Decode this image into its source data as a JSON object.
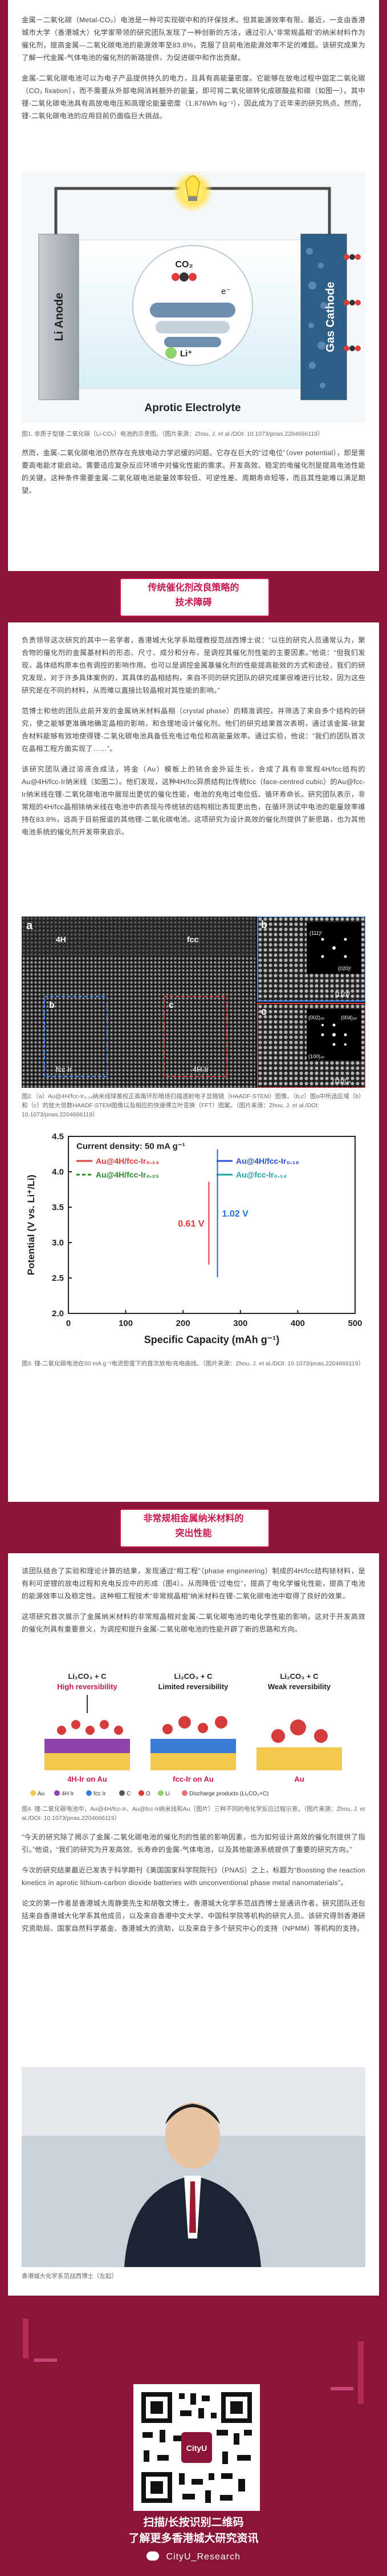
{
  "intro": {
    "paragraphs": [
      "金属－二氧化碳（Metal-CO₂）电池是一种可实现碳中和的环保技术。但其能源效率有限。最近，一支由香港城市大学（香港城大）化学家带领的研究团队发现了一种创新的方法，通过引入“非常规晶相”的纳米材料作为催化剂，提高金属—二氧化碳电池的能源效率至83.8%，克服了目前电池能源效率不足的难题。该研究成果为了解一代金属-气体电池的催化剂的新路提供，为促进碳中和作出贡献。",
      "金属-二氧化碳电池可以为电子产品提供持久的电力，且具有高能量密度。它能够在放电过程中固定二氧化碳（CO₂ fixation），而不需要从外部电网消耗额外的能量，即可将二氧化碳转化成碳酸盐和碳（如图一）。其中锂-二氧化碳电池具有高放电电压和高理论能量密度（1,876Wh kg⁻¹），因此成为了近年来的研究热点。然而，锂-二氧化碳电池的应用目前仍面临巨大挑战。"
    ],
    "figure1_caption": "图1. 非质子型锂-二氧化碳（Li-CO₂）电池的示意图。（图片来源：Zhou, J. et al./DOI: 10.1073/pnas.2204666119）",
    "paragraph_after": "然而，金属-二氧化碳电池仍然存在充放电动力学迟缓的问题。它存在巨大的“过电位”（over potential），即是需要高电能才能启动。需要适应复杂反应环境中对催化性能的需求。开发高效、稳定的电催化剂是提高电池性能的关键。这种条件需要金属-二氧化碳电池能量效率较低、可逆性差、周期寿命短等，而且其性能难以满足期望。"
  },
  "figure1": {
    "left_label": "Li Anode",
    "right_label": "Gas Cathode",
    "bottom_label": "Aprotic Electrolyte",
    "co2_label": "CO₂",
    "e_label": "e⁻",
    "li_label": "Li⁺"
  },
  "section1": {
    "title_line1": "传统催化剂改良策略的",
    "title_line2": "技术障碍",
    "paragraphs": [
      "负责领导这次研究的其中一名学者，香港城大化学系助理教授范战西博士说：“以往的研究人员通常认为，聚合物的催化剂的金属基材料的形态、尺寸、成分和分布，是调控其催化剂性能的主要因素。”他说：“但我们发现，晶体结构原本也有调控的影响作用。也可以是调控金属基催化剂的性能提高能效的方式和途径，我们的研究发现，对于许多具体案例的，其具体的晶相结构，来自不同的研究团队的研究成果很难进行比较，因为这些研究是在不同的材料，从而难以直接比较晶相对其性能的影响。”",
      "范博士和他的团队此前开发的金属纳米材料晶相（crystal phase）的精准调控。并筛选了来自多个结构的研究，使之能够更准确地确定晶相的影响，和合理地设计催化剂。他们的研究结果首次表明，通过该金属-铱复合材料能够有效地使得锂-二氧化碳电池具备低充电过电位和高能量效率。通过实验，他说：“我们的团队首次在晶相工程方面实现了……”。",
      "该研究团队通过溶液合成法，将金（Au）模板上的铱合金外延生长，合成了具有非常规4H/fcc结构的Au@4H/fcc-Ir纳米线（如图二）。他们发现，这种4H/fcc异质结构比传统fcc（face-centred cubic）的Au@fcc-Ir纳米线在锂-二氧化碳电池中展现出更优的催化性能，电池的充电过电位低、循环寿命长。研究团队表示，非常规的4H/fcc晶相铱纳米线在电池中的表现与传统铱的结构相比表现更出色，在循环测试中电池的能量效率维持在83.8%，远高于目前报道的其他锂-二氧化碳电池。这项研究为设计高效的催化剂提供了新思路，也为其他电池系统的催化剂开发带来启示。"
    ],
    "figure2_caption": "图2.（a）Au@4H/fcc-Ir₀.₁₄纳米线球差校正高角环形暗场扫描透射电子显微镜（HAADF-STEM）图像。（b,c）图a中所选区域（b）和（c）的放大倍数HAADF-STEM图像以及相应的快速傅立叶变换（FFT）图案。（图片来源：Zhou, J. et al./DOI: 10.1073/pnas.2204666119）",
    "figure3_caption": "图3. 锂-二氧化碳电池在50 mA g⁻¹电流密度下的首次放电/充电曲线。（图片来源：Zhou, J. et al./DOI: 10.1073/pnas.2204666119）"
  },
  "figure2": {
    "labels": {
      "panel_a": "a",
      "panel_b": "b",
      "panel_c": "c",
      "phase_4h": "4H",
      "phase_fcc": "fcc",
      "region_fcc_ir": "fcc Ir",
      "region_4h_ir": "4H Ir",
      "zone_b": "[110]ᶠ",
      "zone_c": "[110]₄ₕ",
      "spot1": "(111)ᶠ",
      "spot2": "(020)ᶠ",
      "spot3": "(002)₄ₕ",
      "spot4": "(100)₄ₕ",
      "spot5": "(004)₄ₕ"
    }
  },
  "figure3": {
    "chart_data": {
      "type": "line",
      "title": "",
      "annotation": "Current density: 50 mA g⁻¹",
      "xlabel": "Specific Capacity (mAh g⁻¹)",
      "ylabel": "Potential (V vs. Li⁺/Li)",
      "xlim": [
        0,
        500
      ],
      "ylim": [
        2.0,
        4.5
      ],
      "xticks": [
        0,
        100,
        200,
        300,
        400,
        500
      ],
      "yticks": [
        2.0,
        2.5,
        3.0,
        3.5,
        4.0,
        4.5
      ],
      "gap_label_1": "0.61 V",
      "gap_label_2": "1.02 V",
      "series": [
        {
          "name": "Au@4H/fcc-Ir₀.₁₄",
          "color": "#e03a3a",
          "dashed": false,
          "charge": [
            [
              0,
              3.55
            ],
            [
              20,
              3.68
            ],
            [
              60,
              3.74
            ],
            [
              120,
              3.78
            ],
            [
              200,
              3.82
            ],
            [
              300,
              3.86
            ],
            [
              400,
              3.9
            ],
            [
              500,
              3.95
            ]
          ],
          "discharge": [
            [
              0,
              2.9
            ],
            [
              20,
              2.8
            ],
            [
              60,
              2.74
            ],
            [
              150,
              2.71
            ],
            [
              250,
              2.69
            ],
            [
              350,
              2.67
            ],
            [
              450,
              2.64
            ],
            [
              500,
              2.6
            ]
          ]
        },
        {
          "name": "Au@4H/fcc-Ir₀.₁₈",
          "color": "#2a4fd6",
          "dashed": false,
          "charge": [
            [
              0,
              3.7
            ],
            [
              20,
              3.9
            ],
            [
              60,
              3.98
            ],
            [
              120,
              4.02
            ],
            [
              200,
              4.07
            ],
            [
              300,
              4.12
            ],
            [
              400,
              4.17
            ],
            [
              500,
              4.22
            ]
          ],
          "discharge": [
            [
              0,
              2.85
            ],
            [
              20,
              2.72
            ],
            [
              60,
              2.66
            ],
            [
              150,
              2.63
            ],
            [
              250,
              2.61
            ],
            [
              350,
              2.59
            ],
            [
              450,
              2.56
            ],
            [
              500,
              2.52
            ]
          ]
        },
        {
          "name": "Au@4H/fcc-Ir₀.₂₅",
          "color": "#2b8a2b",
          "dashed": true,
          "charge": [
            [
              0,
              3.6
            ],
            [
              20,
              3.8
            ],
            [
              60,
              3.88
            ],
            [
              120,
              3.93
            ],
            [
              200,
              3.98
            ],
            [
              300,
              4.03
            ],
            [
              400,
              4.08
            ],
            [
              500,
              4.13
            ]
          ],
          "discharge": [
            [
              0,
              2.83
            ],
            [
              20,
              2.7
            ],
            [
              60,
              2.64
            ],
            [
              150,
              2.61
            ],
            [
              250,
              2.59
            ],
            [
              350,
              2.57
            ],
            [
              450,
              2.54
            ],
            [
              500,
              2.5
            ]
          ]
        },
        {
          "name": "Au@fcc-Ir₀.₁₄",
          "color": "#1aa5a5",
          "dashed": false,
          "charge": [
            [
              0,
              3.95
            ],
            [
              20,
              4.1
            ],
            [
              60,
              4.18
            ],
            [
              120,
              4.23
            ],
            [
              200,
              4.28
            ],
            [
              300,
              4.32
            ],
            [
              400,
              4.36
            ],
            [
              500,
              4.4
            ]
          ],
          "discharge": [
            [
              0,
              2.78
            ],
            [
              20,
              2.62
            ],
            [
              60,
              2.56
            ],
            [
              150,
              2.53
            ],
            [
              250,
              2.51
            ],
            [
              350,
              2.49
            ],
            [
              450,
              2.46
            ],
            [
              500,
              2.42
            ]
          ]
        }
      ]
    }
  },
  "section2": {
    "title_line1": "非常规相金属纳米材料的",
    "title_line2": "突出性能",
    "paragraphs": [
      "该团队结合了实验和理论计算的结果，发现通过“相工程”（phase engineering）制成的4H/fcc结构铱材料，是有利可逆锂的放电过程和充电反应中的形成（图4）。从而降低“过电位”，提高了电化学催化性能，提高了电池的能源效率以及稳定性。这种相工程技术“非常规晶相”纳米材料在锂-二氧化碳电池中取得了良好的效果。",
      "这项研究首次展示了金属纳米材料的非常规晶相对金属-二氧化碳电池的电化学性能的影响，这对于开发高效的催化剂具有重要意义，为调控和提升金属-二氧化碳电池的性能开辟了新的思路和方向。"
    ],
    "figure4_caption": "图4. 锂-二氧化碳电池中，Au@4H/fcc-Ir、Au@fcc-Ir纳米线和Au（图片）三种不同的电化学反应过程示意。（图片来源：Zhou, J. et al./DOI: 10.1073/pnas.2204666119）",
    "paragraphs_after": [
      "“今天的研究除了揭示了金属-二氧化碳电池的催化剂的性能的影响因素，也为如何设计高效的催化剂提供了指引。”他说，“我们的研究为开发高效、长寿命的金属-气体电池，以及其他能源系统提供了重要的研究方向。”",
      "今次的研究结果最近已发表于科学期刊《美国国家科学院院刊》（PNAS）之上，标题为“Boosting the reaction kinetics in aprotic lithium-carbon dioxide batteries with unconventional phase metal nanomaterials”。",
      "论文的第一作者是香港城大周静雯先生和胡敬文博士。香港城大化学系范战西博士是通讯作者。研究团队还包括来自香港城大化学系其他成员，以及来自香港中文大学、中国科学院等机构的研究人员。该研究得到香港研究资助局、国家自然科学基金、香港城大的资助，以及来自于多个研究中心的支持（NPMM）等机构的支持。"
    ],
    "photo_caption": "香港城大化学系范战西博士（左起）"
  },
  "figure4": {
    "panel1_title": "Li₂CO₃ + C",
    "panel1_sub": "High reversibility",
    "panel2_title": "Li₂CO₃ + C",
    "panel2_sub": "Limited reversibility",
    "panel3_title": "Li₂CO₃ + C",
    "panel3_sub": "Weak reversibility",
    "base1": "4H-Ir on Au",
    "base2": "fcc-Ir on Au",
    "base3": "Au",
    "legend": [
      "Au",
      "4H Ir",
      "fcc Ir",
      "C",
      "O",
      "Li",
      "Discharge products (Li₂CO₃+C)"
    ]
  },
  "footer": {
    "qr_label": "CityU",
    "line1": "扫描/长按识别二维码",
    "line2": "了解更多香港城大研究资讯",
    "account": "CityU_Research"
  },
  "colors": {
    "brand": "#8a1538",
    "accent": "#c8174b",
    "text": "#444444"
  }
}
